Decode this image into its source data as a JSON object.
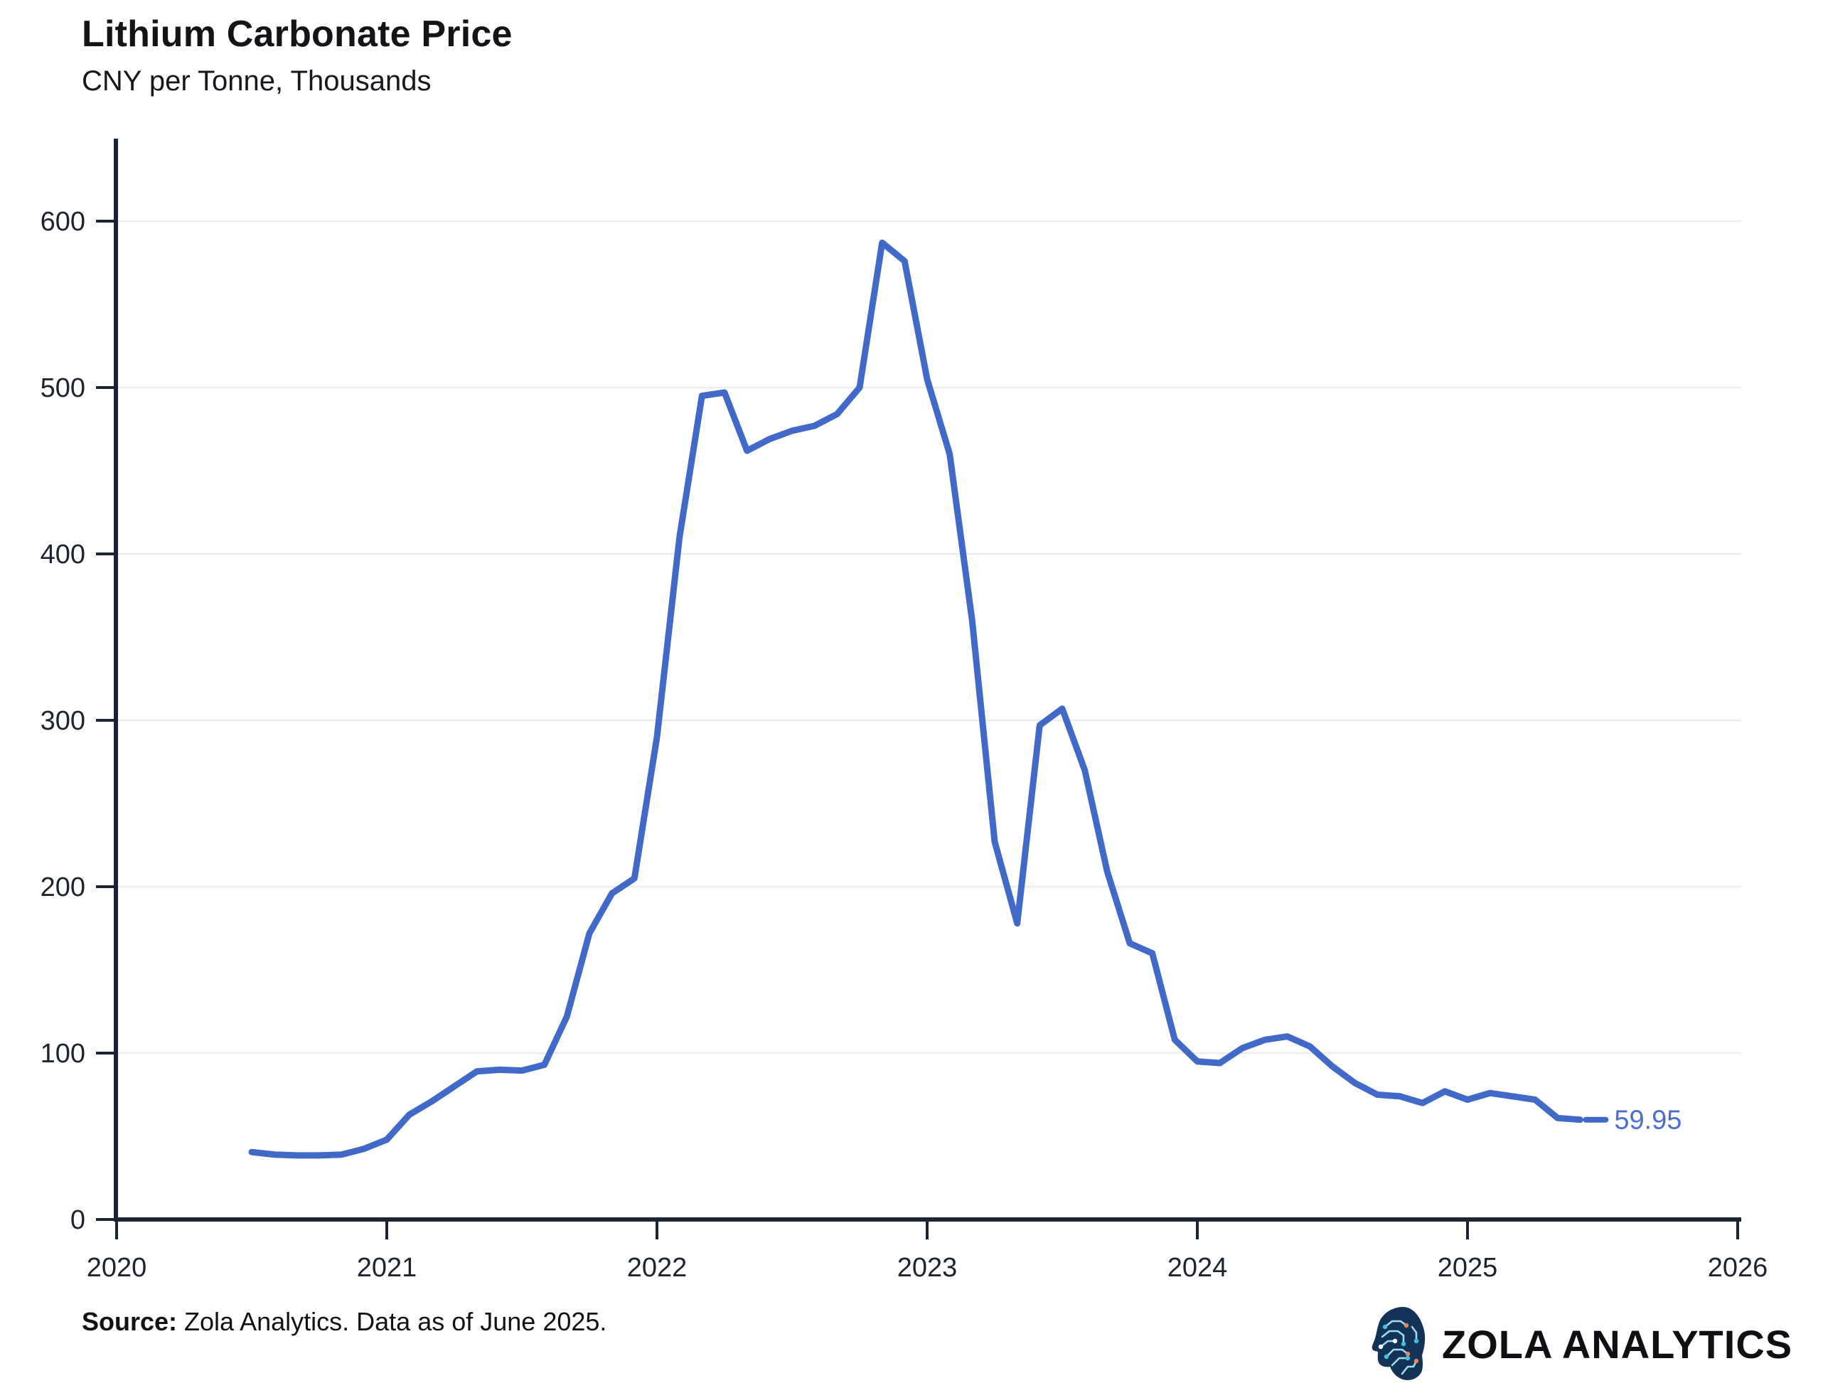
{
  "title": "Lithium Carbonate Price",
  "subtitle": "CNY per Tonne, Thousands",
  "source": {
    "label": "Source:",
    "text": " Zola Analytics. Data as of June 2025."
  },
  "brand": {
    "name": "ZOLA ANALYTICS",
    "icon": "brain-circuit-head-icon"
  },
  "end_label": "59.95",
  "colors": {
    "line": "#4169c8",
    "end_label": "#4a6fd0",
    "axis": "#1b2433",
    "tick_text": "#1e242e",
    "grid": "#ececef",
    "logo_head": "#123357",
    "logo_circuit": "#9fdcec",
    "logo_node_teal": "#3cc4de",
    "logo_node_orange": "#e8885a"
  },
  "chart_data": {
    "type": "line",
    "title": "Lithium Carbonate Price",
    "subtitle": "CNY per Tonne, Thousands",
    "xlabel": "",
    "ylabel": "CNY per Tonne, Thousands",
    "ylim": [
      0,
      650
    ],
    "xlim": [
      2020,
      2026
    ],
    "yticks": [
      0,
      100,
      200,
      300,
      400,
      500,
      600
    ],
    "xticks": [
      2020,
      2021,
      2022,
      2023,
      2024,
      2025,
      2026
    ],
    "grid": "horizontal",
    "legend": "none",
    "last_value_annotation": "59.95",
    "series": [
      {
        "name": "Lithium Carbonate Price (CNY per tonne, thousands)",
        "points": [
          {
            "date": "2020-07",
            "value": 40.5
          },
          {
            "date": "2020-08",
            "value": 39
          },
          {
            "date": "2020-09",
            "value": 38.5
          },
          {
            "date": "2020-10",
            "value": 38.5
          },
          {
            "date": "2020-11",
            "value": 39
          },
          {
            "date": "2020-12",
            "value": 42.5
          },
          {
            "date": "2021-01",
            "value": 48
          },
          {
            "date": "2021-02",
            "value": 63
          },
          {
            "date": "2021-03",
            "value": 71
          },
          {
            "date": "2021-04",
            "value": 80
          },
          {
            "date": "2021-05",
            "value": 89
          },
          {
            "date": "2021-06",
            "value": 90
          },
          {
            "date": "2021-07",
            "value": 89.5
          },
          {
            "date": "2021-08",
            "value": 93
          },
          {
            "date": "2021-09",
            "value": 122
          },
          {
            "date": "2021-10",
            "value": 172
          },
          {
            "date": "2021-11",
            "value": 196
          },
          {
            "date": "2021-12",
            "value": 205
          },
          {
            "date": "2022-01",
            "value": 290
          },
          {
            "date": "2022-02",
            "value": 410
          },
          {
            "date": "2022-03",
            "value": 495
          },
          {
            "date": "2022-04",
            "value": 497
          },
          {
            "date": "2022-05",
            "value": 462
          },
          {
            "date": "2022-06",
            "value": 469
          },
          {
            "date": "2022-07",
            "value": 474
          },
          {
            "date": "2022-08",
            "value": 477
          },
          {
            "date": "2022-09",
            "value": 484
          },
          {
            "date": "2022-10",
            "value": 500
          },
          {
            "date": "2022-11",
            "value": 587
          },
          {
            "date": "2022-12",
            "value": 576
          },
          {
            "date": "2023-01",
            "value": 505
          },
          {
            "date": "2023-02",
            "value": 460
          },
          {
            "date": "2023-03",
            "value": 360
          },
          {
            "date": "2023-04",
            "value": 227
          },
          {
            "date": "2023-05",
            "value": 178
          },
          {
            "date": "2023-06",
            "value": 297
          },
          {
            "date": "2023-07",
            "value": 307
          },
          {
            "date": "2023-08",
            "value": 270
          },
          {
            "date": "2023-09",
            "value": 209
          },
          {
            "date": "2023-10",
            "value": 166
          },
          {
            "date": "2023-11",
            "value": 160
          },
          {
            "date": "2023-12",
            "value": 108
          },
          {
            "date": "2024-01",
            "value": 95
          },
          {
            "date": "2024-02",
            "value": 94
          },
          {
            "date": "2024-03",
            "value": 103
          },
          {
            "date": "2024-04",
            "value": 108
          },
          {
            "date": "2024-05",
            "value": 110
          },
          {
            "date": "2024-06",
            "value": 104
          },
          {
            "date": "2024-07",
            "value": 92
          },
          {
            "date": "2024-08",
            "value": 82
          },
          {
            "date": "2024-09",
            "value": 75
          },
          {
            "date": "2024-10",
            "value": 74
          },
          {
            "date": "2024-11",
            "value": 70
          },
          {
            "date": "2024-12",
            "value": 77
          },
          {
            "date": "2025-01",
            "value": 72
          },
          {
            "date": "2025-02",
            "value": 76
          },
          {
            "date": "2025-03",
            "value": 74
          },
          {
            "date": "2025-04",
            "value": 72
          },
          {
            "date": "2025-05",
            "value": 61
          },
          {
            "date": "2025-06",
            "value": 59.95
          }
        ]
      }
    ]
  }
}
